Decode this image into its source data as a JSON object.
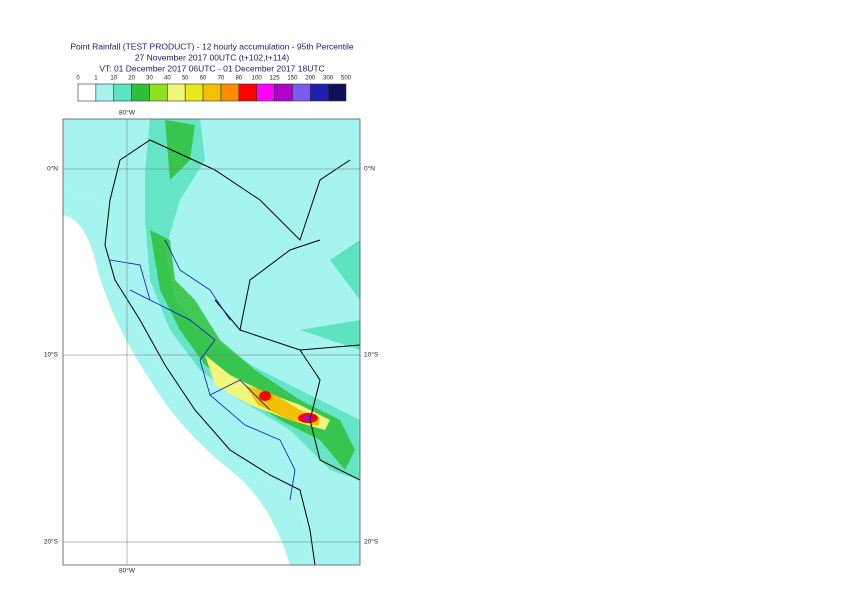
{
  "header": {
    "title_lines": [
      "Point Rainfall (TEST PRODUCT) - 12 hourly accumulation - 95th Percentile",
      "27 November 2017 00UTC (t+102,t+114)",
      "VT: 01 December 2017 06UTC - 01 December 2017 18UTC"
    ]
  },
  "legend": {
    "ticks": [
      0,
      1,
      10,
      20,
      30,
      40,
      50,
      60,
      70,
      80,
      100,
      125,
      150,
      200,
      300,
      500
    ],
    "colors": [
      "#ffffff",
      "#a6f4f0",
      "#5ee3c0",
      "#2fbf3a",
      "#8fe020",
      "#f0f77a",
      "#e8e81a",
      "#f5c000",
      "#ff8c00",
      "#ff0000",
      "#ff00ff",
      "#b000d0",
      "#7a5cf0",
      "#2020b0",
      "#10105a"
    ]
  },
  "map": {
    "lat_labels": [
      "0°N",
      "10°S",
      "20°S"
    ],
    "lon_label": "80°W"
  }
}
